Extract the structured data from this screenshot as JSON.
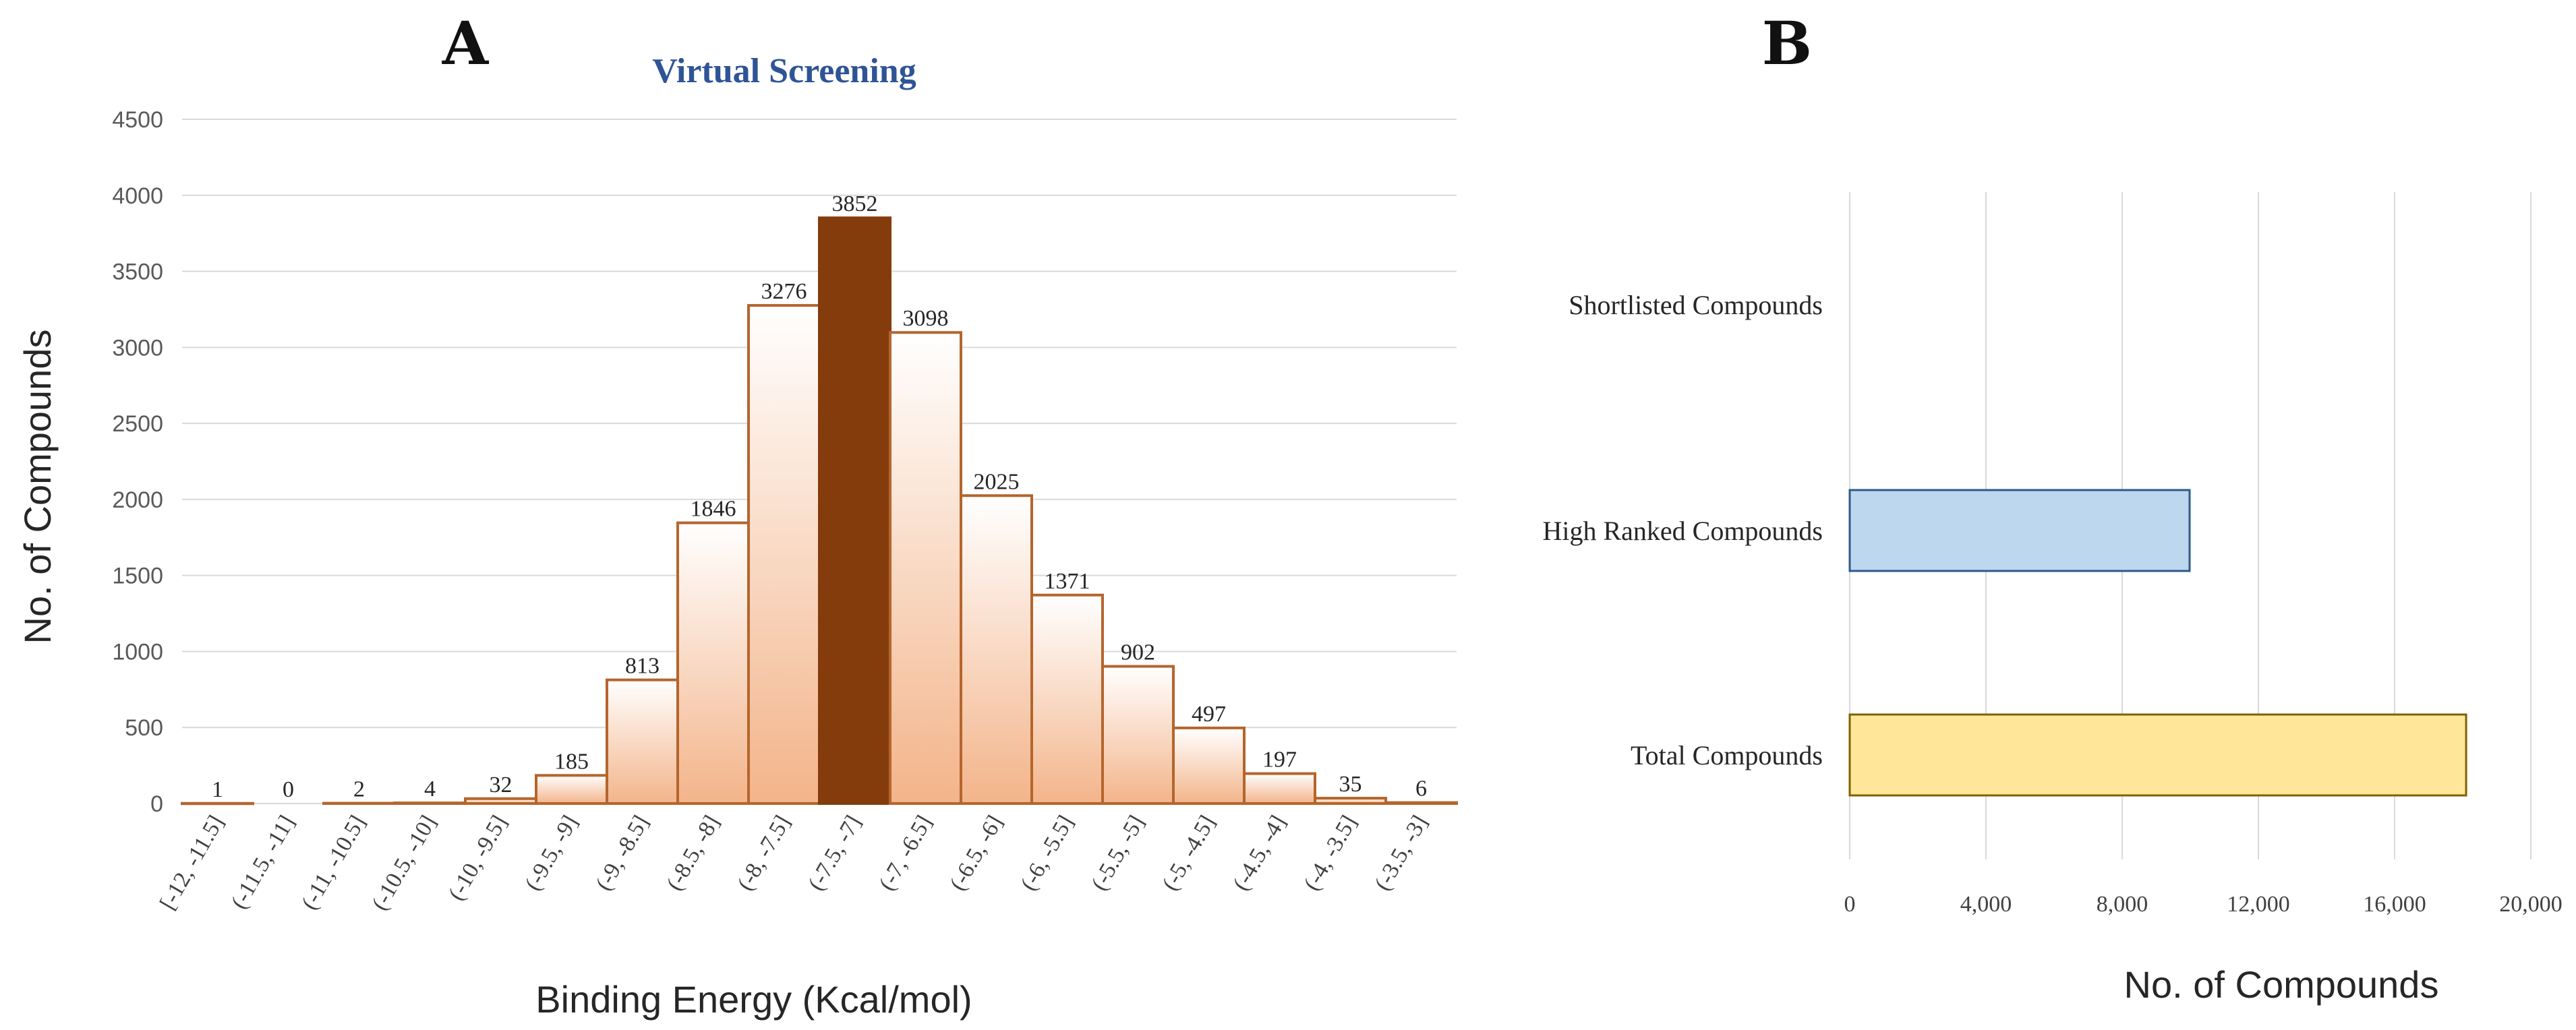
{
  "chart_data": [
    {
      "panel": "A",
      "type": "bar",
      "title": "Virtual Screening",
      "xlabel": "Binding Energy (Kcal/mol)",
      "ylabel": "No. of Compounds",
      "ylim": [
        0,
        4500
      ],
      "yticks": [
        0,
        500,
        1000,
        1500,
        2000,
        2500,
        3000,
        3500,
        4000,
        4500
      ],
      "grid": true,
      "highlight_category": "(-7.5, -7]",
      "colors": {
        "bar_stroke": "#b5652c",
        "bar_top": "#ffffff",
        "bar_bottom": "#f3b48a",
        "highlight": "#843c0c",
        "grid": "#d9d9d9"
      },
      "categories": [
        "[-12, -11.5]",
        "(-11.5, -11]",
        "(-11, -10.5]",
        "(-10.5, -10]",
        "(-10, -9.5]",
        "(-9.5, -9]",
        "(-9, -8.5]",
        "(-8.5, -8]",
        "(-8, -7.5]",
        "(-7.5, -7]",
        "(-7, -6.5]",
        "(-6.5, -6]",
        "(-6, -5.5]",
        "(-5.5, -5]",
        "(-5, -4.5]",
        "(-4.5, -4]",
        "(-4, -3.5]",
        "(-3.5, -3]"
      ],
      "values": [
        1,
        0,
        2,
        4,
        32,
        185,
        813,
        1846,
        3276,
        3852,
        3098,
        2025,
        1371,
        902,
        497,
        197,
        35,
        6
      ]
    },
    {
      "panel": "B",
      "type": "bar",
      "orientation": "horizontal",
      "xlabel": "No. of Compounds",
      "xlim": [
        0,
        20000
      ],
      "xticks": [
        "0",
        "4,000",
        "8,000",
        "12,000",
        "16,000",
        "20,000"
      ],
      "xtick_values": [
        0,
        4000,
        8000,
        12000,
        16000,
        20000
      ],
      "grid": true,
      "categories": [
        "Shortlisted Compounds",
        "High Ranked Compounds",
        "Total Compounds"
      ],
      "values": [
        0,
        9980,
        18100
      ],
      "colors": [
        "#ffffff",
        "#bdd7ee",
        "#ffe699"
      ],
      "stroke_colors": [
        "#ffffff",
        "#2e5a8a",
        "#7f6000"
      ],
      "grid_color": "#d9d9d9"
    }
  ]
}
